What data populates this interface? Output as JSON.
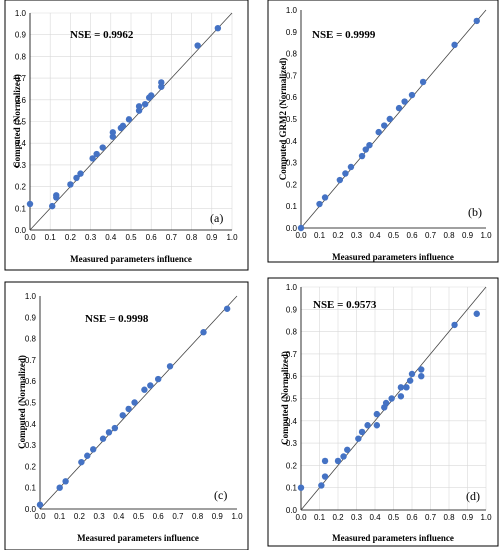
{
  "chart_data": [
    {
      "type": "scatter",
      "panel_label": "(a)",
      "annotation": "NSE = 0.9962",
      "xlabel": "Measured parameters influence",
      "ylabel": "Computed  (Normalized)",
      "xlim": [
        0,
        1
      ],
      "ylim": [
        0,
        1
      ],
      "xticks": [
        "0.0",
        "0.1",
        "0.2",
        "0.3",
        "0.4",
        "0.5",
        "0.6",
        "0.7",
        "0.8",
        "0.9",
        "1.0"
      ],
      "yticks": [
        "0.0",
        "0.1",
        "0.2",
        "0.3",
        "0.4",
        "0.5",
        "0.6",
        "0.7",
        "0.8",
        "0.9",
        "1.0"
      ],
      "grid": true,
      "reference_line": "y = x",
      "marker_color": "#4472c4",
      "points": [
        [
          0.0,
          0.12
        ],
        [
          0.11,
          0.11
        ],
        [
          0.13,
          0.15
        ],
        [
          0.13,
          0.16
        ],
        [
          0.2,
          0.21
        ],
        [
          0.23,
          0.24
        ],
        [
          0.25,
          0.26
        ],
        [
          0.31,
          0.33
        ],
        [
          0.33,
          0.35
        ],
        [
          0.36,
          0.38
        ],
        [
          0.41,
          0.43
        ],
        [
          0.41,
          0.45
        ],
        [
          0.45,
          0.47
        ],
        [
          0.46,
          0.48
        ],
        [
          0.49,
          0.51
        ],
        [
          0.54,
          0.55
        ],
        [
          0.54,
          0.57
        ],
        [
          0.57,
          0.58
        ],
        [
          0.59,
          0.61
        ],
        [
          0.6,
          0.62
        ],
        [
          0.65,
          0.66
        ],
        [
          0.65,
          0.68
        ],
        [
          0.83,
          0.85
        ],
        [
          0.93,
          0.93
        ]
      ]
    },
    {
      "type": "scatter",
      "panel_label": "(b)",
      "annotation": "NSE =  0.9999",
      "xlabel": "Measured parameters influence",
      "ylabel": "Computed GRM2  (Normalized)",
      "xlim": [
        0,
        1
      ],
      "ylim": [
        0,
        1
      ],
      "xticks": [
        "0.0",
        "0.1",
        "0.2",
        "0.3",
        "0.4",
        "0.5",
        "0.6",
        "0.7",
        "0.8",
        "0.9",
        "1.0"
      ],
      "yticks": [
        "0.0",
        "0.1",
        "0.2",
        "0.3",
        "0.4",
        "0.5",
        "0.6",
        "0.7",
        "0.8",
        "0.9",
        "1.0"
      ],
      "grid": false,
      "reference_line": "y = x",
      "marker_color": "#4472c4",
      "points": [
        [
          0.0,
          0.0
        ],
        [
          0.1,
          0.11
        ],
        [
          0.13,
          0.14
        ],
        [
          0.21,
          0.22
        ],
        [
          0.24,
          0.25
        ],
        [
          0.27,
          0.28
        ],
        [
          0.33,
          0.33
        ],
        [
          0.35,
          0.36
        ],
        [
          0.37,
          0.38
        ],
        [
          0.42,
          0.44
        ],
        [
          0.45,
          0.47
        ],
        [
          0.48,
          0.5
        ],
        [
          0.53,
          0.55
        ],
        [
          0.56,
          0.58
        ],
        [
          0.6,
          0.61
        ],
        [
          0.66,
          0.67
        ],
        [
          0.83,
          0.84
        ],
        [
          0.95,
          0.95
        ]
      ]
    },
    {
      "type": "scatter",
      "panel_label": "(c)",
      "annotation": "NSE = 0.9998",
      "xlabel": "Measured parameters influence",
      "ylabel": "Computed  (Normalized)",
      "xlim": [
        0,
        1
      ],
      "ylim": [
        0,
        1
      ],
      "xticks": [
        "0.0",
        "0.1",
        "0.2",
        "0.3",
        "0.4",
        "0.5",
        "0.6",
        "0.7",
        "0.8",
        "0.9",
        "1.0"
      ],
      "yticks": [
        "0.0",
        "0.1",
        "0.2",
        "0.3",
        "0.4",
        "0.5",
        "0.6",
        "0.7",
        "0.8",
        "0.9",
        "1.0"
      ],
      "grid": false,
      "reference_line": "y = x",
      "marker_color": "#4472c4",
      "points": [
        [
          0.0,
          0.02
        ],
        [
          0.1,
          0.1
        ],
        [
          0.13,
          0.13
        ],
        [
          0.21,
          0.22
        ],
        [
          0.24,
          0.25
        ],
        [
          0.27,
          0.28
        ],
        [
          0.32,
          0.33
        ],
        [
          0.35,
          0.36
        ],
        [
          0.38,
          0.38
        ],
        [
          0.42,
          0.44
        ],
        [
          0.45,
          0.47
        ],
        [
          0.48,
          0.5
        ],
        [
          0.53,
          0.56
        ],
        [
          0.56,
          0.58
        ],
        [
          0.6,
          0.61
        ],
        [
          0.66,
          0.67
        ],
        [
          0.83,
          0.83
        ],
        [
          0.95,
          0.94
        ]
      ]
    },
    {
      "type": "scatter",
      "panel_label": "(d)",
      "annotation": "NSE = 0.9573",
      "xlabel": "Measured parameters influence",
      "ylabel": "Computed  (Normalized)",
      "xlim": [
        0,
        1
      ],
      "ylim": [
        0,
        1
      ],
      "xticks": [
        "0.0",
        "0.1",
        "0.2",
        "0.3",
        "0.4",
        "0.5",
        "0.6",
        "0.7",
        "0.8",
        "0.9",
        "1.0"
      ],
      "yticks": [
        "0.0",
        "0.1",
        "0.2",
        "0.3",
        "0.4",
        "0.5",
        "0.6",
        "0.7",
        "0.8",
        "0.9",
        "1.0"
      ],
      "grid": true,
      "reference_line": "y = x",
      "marker_color": "#4472c4",
      "points": [
        [
          0.0,
          0.1
        ],
        [
          0.11,
          0.11
        ],
        [
          0.13,
          0.15
        ],
        [
          0.13,
          0.22
        ],
        [
          0.2,
          0.22
        ],
        [
          0.23,
          0.24
        ],
        [
          0.25,
          0.27
        ],
        [
          0.31,
          0.32
        ],
        [
          0.33,
          0.35
        ],
        [
          0.36,
          0.38
        ],
        [
          0.41,
          0.38
        ],
        [
          0.41,
          0.43
        ],
        [
          0.45,
          0.46
        ],
        [
          0.46,
          0.48
        ],
        [
          0.49,
          0.5
        ],
        [
          0.54,
          0.51
        ],
        [
          0.54,
          0.55
        ],
        [
          0.57,
          0.55
        ],
        [
          0.59,
          0.58
        ],
        [
          0.6,
          0.61
        ],
        [
          0.65,
          0.6
        ],
        [
          0.65,
          0.63
        ],
        [
          0.83,
          0.83
        ],
        [
          0.95,
          0.88
        ]
      ]
    }
  ]
}
